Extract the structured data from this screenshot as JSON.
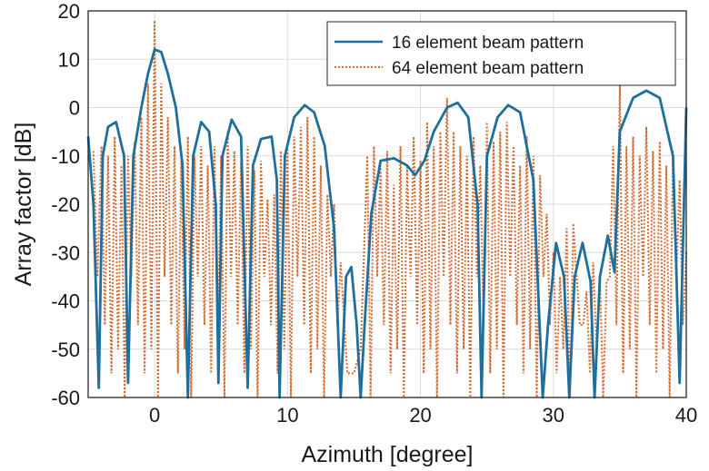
{
  "chart_data": {
    "type": "line",
    "title": "",
    "xlabel": "Azimuth [degree]",
    "ylabel": "Array factor [dB]",
    "xlim": [
      -5,
      40
    ],
    "ylim": [
      -60,
      20
    ],
    "xticks": [
      0,
      10,
      20,
      30,
      40
    ],
    "yticks": [
      20,
      10,
      0,
      -10,
      -20,
      -30,
      -40,
      -50,
      -60
    ],
    "grid": true,
    "legend_position": "top-right",
    "series": [
      {
        "name": "16 element beam pattern",
        "color": "#1f6e9c",
        "style": "solid",
        "points": [
          [
            -5,
            -6
          ],
          [
            -4.6,
            -20
          ],
          [
            -4.2,
            -58
          ],
          [
            -3.9,
            -10
          ],
          [
            -3.5,
            -4
          ],
          [
            -2.9,
            -3
          ],
          [
            -2.3,
            -10
          ],
          [
            -2.0,
            -57
          ],
          [
            -1.6,
            -10
          ],
          [
            -1,
            0
          ],
          [
            -0.5,
            7
          ],
          [
            0,
            12
          ],
          [
            0.5,
            11.5
          ],
          [
            1,
            7
          ],
          [
            1.6,
            0
          ],
          [
            2.1,
            -12
          ],
          [
            2.5,
            -60
          ],
          [
            2.9,
            -10
          ],
          [
            3.5,
            -3
          ],
          [
            4.1,
            -5
          ],
          [
            4.6,
            -20
          ],
          [
            4.8,
            -57
          ],
          [
            5.1,
            -10
          ],
          [
            5.8,
            -2.5
          ],
          [
            6.5,
            -6
          ],
          [
            7,
            -58
          ],
          [
            7.4,
            -12
          ],
          [
            8,
            -6.5
          ],
          [
            8.8,
            -6
          ],
          [
            9.2,
            -15
          ],
          [
            9.4,
            -60
          ],
          [
            9.8,
            -10
          ],
          [
            10.5,
            -2
          ],
          [
            11.3,
            0.5
          ],
          [
            12,
            -1
          ],
          [
            12.8,
            -8
          ],
          [
            13.5,
            -25
          ],
          [
            14,
            -60
          ],
          [
            14.4,
            -35
          ],
          [
            14.8,
            -33
          ],
          [
            15.2,
            -45
          ],
          [
            15.5,
            -60
          ],
          [
            15.8,
            -45
          ],
          [
            16.3,
            -22
          ],
          [
            17,
            -11
          ],
          [
            18,
            -10.5
          ],
          [
            19,
            -12
          ],
          [
            19.6,
            -14
          ],
          [
            20.3,
            -11
          ],
          [
            21,
            -5
          ],
          [
            22,
            0
          ],
          [
            22.8,
            1
          ],
          [
            23.6,
            -2
          ],
          [
            24.3,
            -20
          ],
          [
            24.6,
            -60
          ],
          [
            25,
            -10
          ],
          [
            25.8,
            -2
          ],
          [
            26.6,
            0.5
          ],
          [
            27.5,
            -1
          ],
          [
            28.5,
            -15
          ],
          [
            29.2,
            -60
          ],
          [
            29.6,
            -45
          ],
          [
            30.2,
            -28
          ],
          [
            30.8,
            -35
          ],
          [
            31.2,
            -60
          ],
          [
            31.6,
            -35
          ],
          [
            32.2,
            -28
          ],
          [
            32.8,
            -36
          ],
          [
            33.1,
            -60
          ],
          [
            33.5,
            -35
          ],
          [
            34.1,
            -26.5
          ],
          [
            34.6,
            -34
          ],
          [
            35,
            -5
          ],
          [
            36,
            2
          ],
          [
            37,
            3.5
          ],
          [
            38,
            2
          ],
          [
            39,
            -10
          ],
          [
            39.5,
            -57
          ],
          [
            40,
            0
          ]
        ]
      },
      {
        "name": "64 element beam pattern",
        "color": "#cf6a32",
        "style": "dotted",
        "lobes": [
          [
            -4.6,
            -9
          ],
          [
            -4.0,
            -8
          ],
          [
            -3.5,
            -10
          ],
          [
            -3.0,
            -6
          ],
          [
            -2.5,
            -12
          ],
          [
            -2.0,
            -10
          ],
          [
            -1.5,
            -7
          ],
          [
            -1.0,
            -2
          ],
          [
            -0.5,
            5
          ],
          [
            0,
            18
          ],
          [
            0.5,
            5
          ],
          [
            1.0,
            -2
          ],
          [
            1.5,
            -8
          ],
          [
            2.0,
            -11
          ],
          [
            2.5,
            -6
          ],
          [
            3.0,
            -10
          ],
          [
            3.5,
            -8
          ],
          [
            4.0,
            -12
          ],
          [
            4.5,
            -8
          ],
          [
            5.0,
            -10
          ],
          [
            5.5,
            -5
          ],
          [
            6.0,
            -9
          ],
          [
            6.5,
            -11
          ],
          [
            7.0,
            -8
          ],
          [
            7.5,
            -13
          ],
          [
            8.0,
            -11
          ],
          [
            8.5,
            -19
          ],
          [
            9.0,
            -18
          ],
          [
            9.5,
            -9
          ],
          [
            10.0,
            -8
          ],
          [
            10.5,
            -6
          ],
          [
            11.0,
            -4
          ],
          [
            11.5,
            -2
          ],
          [
            12.0,
            -6
          ],
          [
            12.5,
            -12
          ],
          [
            13.0,
            -18
          ],
          [
            13.5,
            -20
          ],
          [
            14.0,
            -32
          ],
          [
            15.0,
            -55
          ],
          [
            16.0,
            -10
          ],
          [
            16.5,
            -8
          ],
          [
            17.0,
            -12
          ],
          [
            17.5,
            -9
          ],
          [
            18.0,
            -16
          ],
          [
            18.5,
            -8
          ],
          [
            19.0,
            -12
          ],
          [
            19.5,
            -6
          ],
          [
            20.0,
            -11
          ],
          [
            20.5,
            -3
          ],
          [
            21.0,
            -8
          ],
          [
            21.5,
            -5
          ],
          [
            22.0,
            2
          ],
          [
            22.5,
            -5
          ],
          [
            23.0,
            -8
          ],
          [
            23.5,
            -10
          ],
          [
            24.0,
            -6
          ],
          [
            24.5,
            -12
          ],
          [
            25.0,
            -3
          ],
          [
            25.5,
            -7
          ],
          [
            26.0,
            -5
          ],
          [
            26.5,
            -3
          ],
          [
            27.0,
            -8
          ],
          [
            27.5,
            -12
          ],
          [
            28.0,
            -6
          ],
          [
            28.5,
            -10
          ],
          [
            29.0,
            -14
          ],
          [
            29.5,
            -22
          ],
          [
            30.0,
            -30
          ],
          [
            30.5,
            -35
          ],
          [
            31.0,
            -25
          ],
          [
            31.5,
            -24
          ],
          [
            32.0,
            -45
          ],
          [
            32.5,
            -38
          ],
          [
            33.0,
            -32
          ],
          [
            33.5,
            -35
          ],
          [
            34.0,
            -36
          ],
          [
            34.5,
            -8
          ],
          [
            35.0,
            5
          ],
          [
            35.5,
            -8
          ],
          [
            36.0,
            -6
          ],
          [
            36.5,
            -10
          ],
          [
            37.0,
            -4
          ],
          [
            37.5,
            -9
          ],
          [
            38.0,
            -7
          ],
          [
            38.5,
            -12
          ],
          [
            39.0,
            -9
          ],
          [
            39.5,
            -15
          ],
          [
            40.0,
            -30
          ]
        ],
        "null_depths": [
          -60,
          -35,
          -45,
          -55,
          -50
        ]
      }
    ]
  }
}
